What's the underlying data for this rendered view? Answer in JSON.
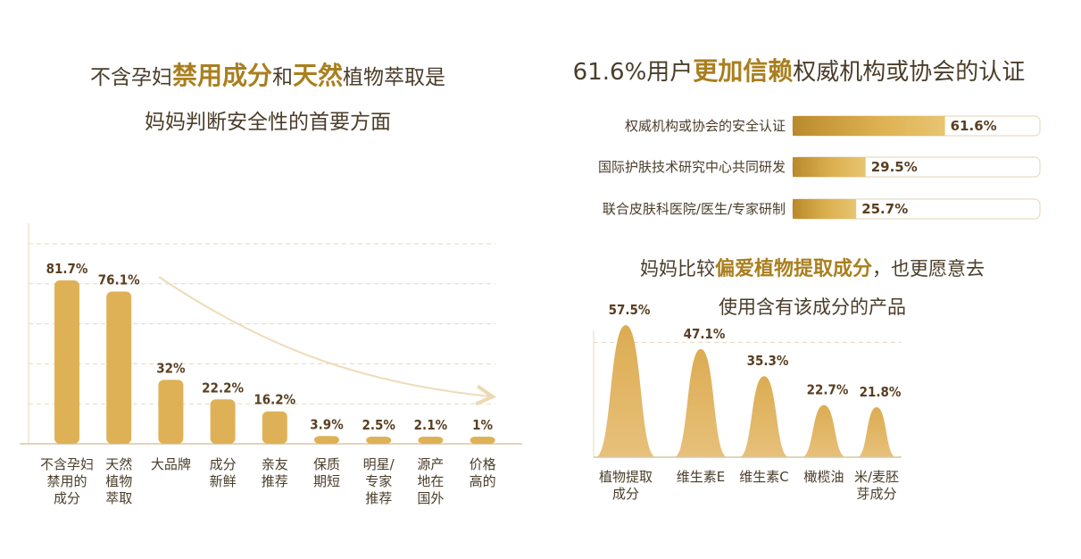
{
  "titles": {
    "left_line1_a": "不含孕妇",
    "left_line1_b": "禁用成分",
    "left_line1_c": "和",
    "left_line1_d": "天然",
    "left_line1_e": "植物萃取是",
    "left_line2": "妈妈判断安全性的首要方面",
    "right_a": "61.6%用户",
    "right_b": "更加信赖",
    "right_c": "权威机构或协会的认证",
    "mid_line1_a": "妈妈比较",
    "mid_line1_b": "偏爱植物提取成分",
    "mid_line1_c": "，也更愿意去",
    "mid_line2": "使用含有该成分的产品"
  },
  "colors": {
    "bar": "#dfb157",
    "gold_dark": "#c8962f",
    "accent_text": "#a97f1f",
    "track_border": "#e8dcc3",
    "grid": "#e6d8bb"
  },
  "chart_data": [
    {
      "type": "bar",
      "categories": [
        "不含孕妇禁用的成分",
        "天然植物萃取",
        "大品牌",
        "成分新鲜",
        "亲友推荐",
        "保质期短",
        "明星/专家推荐",
        "源产地在国外",
        "价格高的"
      ],
      "category_lines": [
        [
          "不含孕妇",
          "禁用的",
          "成分"
        ],
        [
          "天然",
          "植物",
          "萃取"
        ],
        [
          "大品牌"
        ],
        [
          "成分",
          "新鲜"
        ],
        [
          "亲友",
          "推荐"
        ],
        [
          "保质",
          "期短"
        ],
        [
          "明星/",
          "专家",
          "推荐"
        ],
        [
          "源产",
          "地在",
          "国外"
        ],
        [
          "价格",
          "高的"
        ]
      ],
      "values": [
        81.7,
        76.1,
        32,
        22.2,
        16.2,
        3.9,
        2.5,
        2.1,
        1
      ],
      "value_labels": [
        "81.7%",
        "76.1%",
        "32%",
        "22.2%",
        "16.2%",
        "3.9%",
        "2.5%",
        "2.1%",
        "1%"
      ],
      "ylim": [
        0,
        100
      ],
      "grid": true
    },
    {
      "type": "bar",
      "orientation": "horizontal",
      "categories": [
        "权威机构或协会的安全认证",
        "国际护肤技术研究中心共同研发",
        "联合皮肤科医院/医生/专家研制"
      ],
      "values": [
        61.6,
        29.5,
        25.7
      ],
      "value_labels": [
        "61.6%",
        "29.5%",
        "25.7%"
      ],
      "xlim": [
        0,
        100
      ]
    },
    {
      "type": "area",
      "shape": "peaks",
      "categories": [
        "植物提取成分",
        "维生素E",
        "维生素C",
        "橄榄油",
        "米/麦胚芽成分"
      ],
      "category_lines": [
        [
          "植物提取",
          "成分"
        ],
        [
          "维生素E"
        ],
        [
          "维生素C"
        ],
        [
          "橄榄油"
        ],
        [
          "米/麦胚",
          "芽成分"
        ]
      ],
      "values": [
        57.5,
        47.1,
        35.3,
        22.7,
        21.8
      ],
      "value_labels": [
        "57.5%",
        "47.1%",
        "35.3%",
        "22.7%",
        "21.8%"
      ],
      "ylim": [
        0,
        70
      ]
    }
  ]
}
